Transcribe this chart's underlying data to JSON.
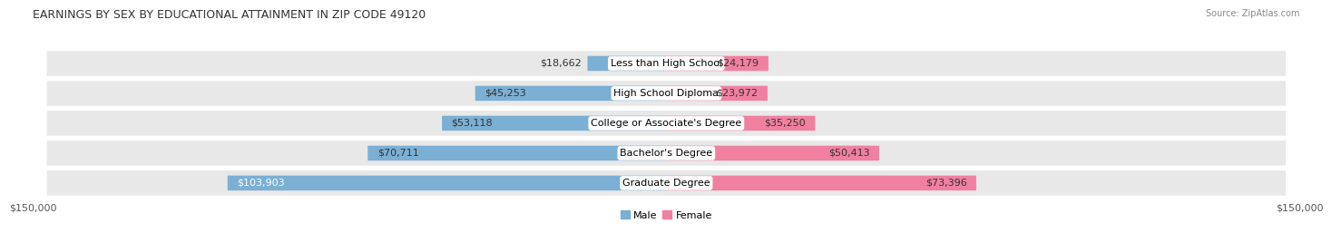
{
  "title": "EARNINGS BY SEX BY EDUCATIONAL ATTAINMENT IN ZIP CODE 49120",
  "source": "Source: ZipAtlas.com",
  "categories": [
    "Less than High School",
    "High School Diploma",
    "College or Associate's Degree",
    "Bachelor's Degree",
    "Graduate Degree"
  ],
  "male_values": [
    18662,
    45253,
    53118,
    70711,
    103903
  ],
  "female_values": [
    24179,
    23972,
    35250,
    50413,
    73396
  ],
  "male_color": "#7bafd4",
  "female_color": "#f080a0",
  "male_label": "Male",
  "female_label": "Female",
  "bar_row_bg": "#e8e8e8",
  "max_value": 150000,
  "xlabel_left": "$150,000",
  "xlabel_right": "$150,000",
  "title_fontsize": 9,
  "source_fontsize": 7,
  "value_fontsize": 8,
  "tick_fontsize": 8,
  "legend_fontsize": 8,
  "background_color": "#ffffff"
}
